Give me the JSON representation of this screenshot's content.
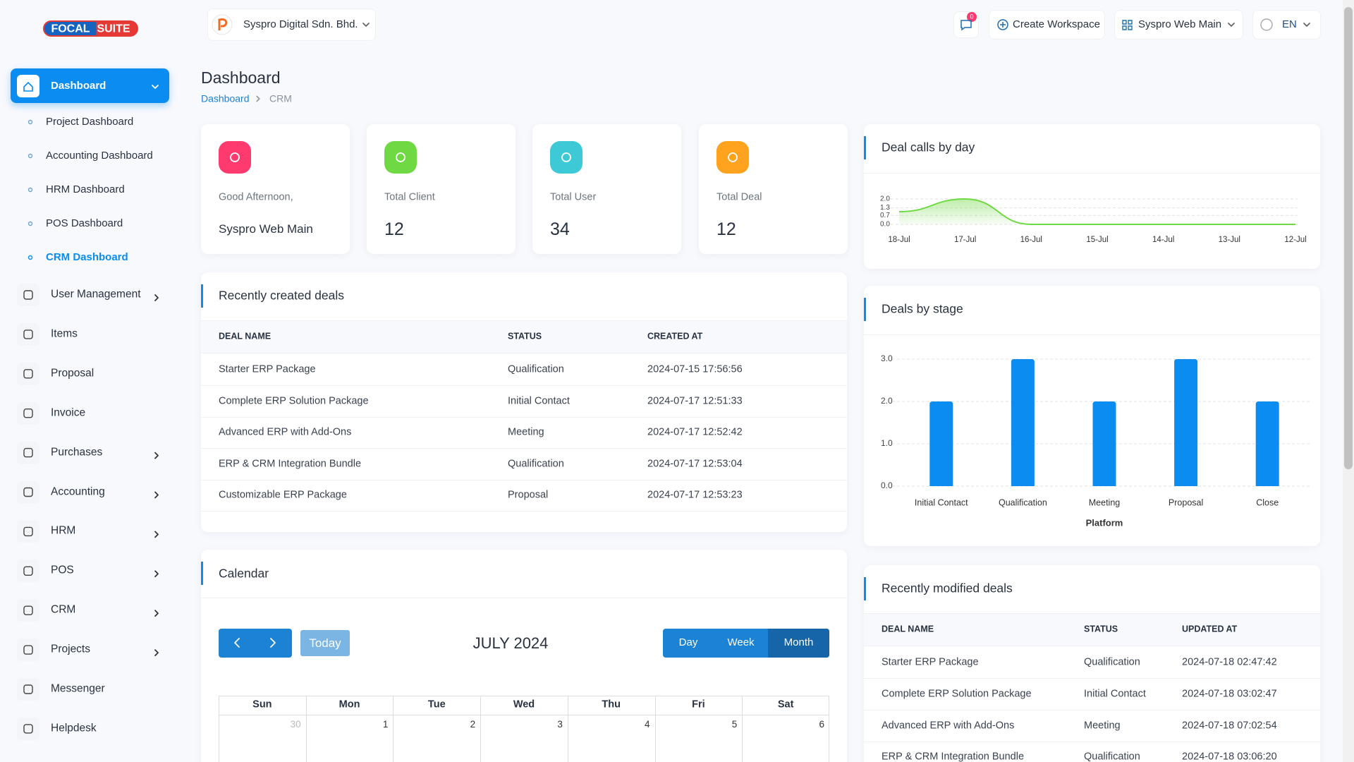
{
  "sidebar": {
    "logo": [
      "FOCAL",
      "SUITE"
    ],
    "menu": [
      {
        "label": "Dashboard",
        "active": true,
        "submenu": [
          {
            "label": "Project Dashboard"
          },
          {
            "label": "Accounting Dashboard"
          },
          {
            "label": "HRM Dashboard"
          },
          {
            "label": "POS Dashboard"
          },
          {
            "label": "CRM Dashboard",
            "active": true
          }
        ]
      },
      {
        "label": "User Management",
        "expandable": true
      },
      {
        "label": "Items"
      },
      {
        "label": "Proposal"
      },
      {
        "label": "Invoice"
      },
      {
        "label": "Purchases",
        "expandable": true
      },
      {
        "label": "Accounting",
        "expandable": true
      },
      {
        "label": "HRM",
        "expandable": true
      },
      {
        "label": "POS",
        "expandable": true
      },
      {
        "label": "CRM",
        "expandable": true
      },
      {
        "label": "Projects",
        "expandable": true
      },
      {
        "label": "Messenger"
      },
      {
        "label": "Helpdesk"
      }
    ]
  },
  "header": {
    "company": "Syspro Digital Sdn. Bhd.",
    "notifications": "0",
    "create_workspace": "Create Workspace",
    "workspace": "Syspro Web Main",
    "language": "EN"
  },
  "page": {
    "title": "Dashboard",
    "breadcrumb": [
      "Dashboard",
      "CRM"
    ]
  },
  "stats": [
    {
      "label": "Good Afternoon,",
      "value": "Syspro Web Main",
      "icon_color": "#ff3a6e"
    },
    {
      "label": "Total Client",
      "value": 12,
      "icon_color": "#6fd943"
    },
    {
      "label": "Total User",
      "value": 34,
      "icon_color": "#3ec9d6"
    },
    {
      "label": "Total Deal",
      "value": 12,
      "icon_color": "#ffa21d"
    }
  ],
  "recent_deals": {
    "title": "Recently created deals",
    "columns": [
      "DEAL NAME",
      "STATUS",
      "CREATED AT"
    ],
    "rows": [
      [
        "Starter ERP Package",
        "Qualification",
        "2024-07-15 17:56:56"
      ],
      [
        "Complete ERP Solution Package",
        "Initial Contact",
        "2024-07-17 12:51:33"
      ],
      [
        "Advanced ERP with Add-Ons",
        "Meeting",
        "2024-07-17 12:52:42"
      ],
      [
        "ERP & CRM Integration Bundle",
        "Qualification",
        "2024-07-17 12:53:04"
      ],
      [
        "Customizable ERP Package",
        "Proposal",
        "2024-07-17 12:53:23"
      ]
    ]
  },
  "calendar": {
    "title": "Calendar",
    "today": "Today",
    "month": "JULY 2024",
    "views": [
      {
        "label": "Day"
      },
      {
        "label": "Week"
      },
      {
        "label": "Month",
        "active": true
      }
    ],
    "weekdays": [
      "Sun",
      "Mon",
      "Tue",
      "Wed",
      "Thu",
      "Fri",
      "Sat"
    ],
    "days": [
      30,
      1,
      2,
      3,
      4,
      5,
      6
    ]
  },
  "chart_data": [
    {
      "type": "line",
      "title": "Deal calls by day",
      "categories": [
        "18-Jul",
        "17-Jul",
        "16-Jul",
        "15-Jul",
        "14-Jul",
        "13-Jul",
        "12-Jul"
      ],
      "values": [
        1,
        2,
        0,
        0,
        0,
        0,
        0
      ],
      "color": "#6fd943",
      "ylim": [
        0,
        2
      ],
      "yticks": [
        {
          "value": 0,
          "label": "0.0"
        },
        0.7,
        1.3,
        {
          "value": 2,
          "label": "2.0"
        }
      ],
      "grid": true
    },
    {
      "type": "bar",
      "title": "Deals by stage",
      "x_label": "Platform",
      "categories": [
        "Initial Contact",
        "Qualification",
        "Meeting",
        "Proposal",
        "Close"
      ],
      "values": [
        2,
        3,
        2,
        3,
        2
      ],
      "color": "#0a8cf0",
      "ylim": [
        0,
        3
      ],
      "yticks": [
        {
          "value": 0,
          "label": "0.0"
        },
        {
          "value": 1,
          "label": "1.0"
        },
        {
          "value": 2,
          "label": "2.0"
        },
        {
          "value": 3,
          "label": "3.0"
        }
      ],
      "grid": true
    }
  ],
  "modified_deals": {
    "title": "Recently modified deals",
    "columns": [
      "DEAL NAME",
      "STATUS",
      "UPDATED AT"
    ],
    "rows": [
      [
        "Starter ERP Package",
        "Qualification",
        "2024-07-18 02:47:42"
      ],
      [
        "Complete ERP Solution Package",
        "Initial Contact",
        "2024-07-18 03:02:47"
      ],
      [
        "Advanced ERP with Add-Ons",
        "Meeting",
        "2024-07-18 07:02:54"
      ],
      [
        "ERP & CRM Integration Bundle",
        "Qualification",
        "2024-07-18 03:06:20"
      ]
    ]
  }
}
